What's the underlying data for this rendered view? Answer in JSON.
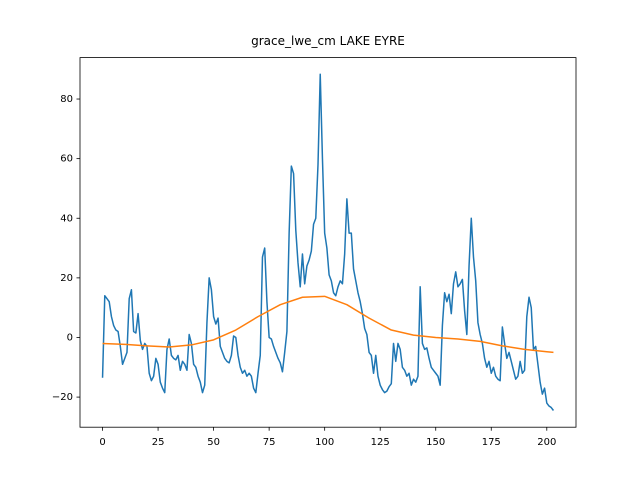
{
  "chart_data": {
    "type": "line",
    "title": "grace_lwe_cm LAKE EYRE",
    "xlim": [
      -10.15,
      213.15
    ],
    "ylim": [
      -30.1,
      93.9
    ],
    "xticks": [
      0,
      25,
      50,
      75,
      100,
      125,
      150,
      175,
      200
    ],
    "yticks": [
      {
        "value": -20,
        "label": "−20"
      },
      0,
      20,
      40,
      60,
      80
    ],
    "series": [
      {
        "color": "#1f77b4",
        "x": [
          0,
          1,
          2,
          3,
          4,
          5,
          6,
          7,
          8,
          9,
          10,
          11,
          12,
          13,
          14,
          15,
          16,
          17,
          18,
          19,
          20,
          21,
          22,
          23,
          24,
          25,
          26,
          27,
          28,
          29,
          30,
          31,
          32,
          33,
          34,
          35,
          36,
          37,
          38,
          39,
          40,
          41,
          42,
          43,
          44,
          45,
          46,
          47,
          48,
          49,
          50,
          51,
          52,
          53,
          54,
          55,
          56,
          57,
          58,
          59,
          60,
          61,
          62,
          63,
          64,
          65,
          66,
          67,
          68,
          69,
          70,
          71,
          72,
          73,
          74,
          75,
          76,
          77,
          78,
          79,
          80,
          81,
          82,
          83,
          84,
          85,
          86,
          87,
          88,
          89,
          90,
          91,
          92,
          93,
          94,
          95,
          96,
          97,
          98,
          99,
          100,
          101,
          102,
          103,
          104,
          105,
          106,
          107,
          108,
          109,
          110,
          111,
          112,
          113,
          114,
          115,
          116,
          117,
          118,
          119,
          120,
          121,
          122,
          123,
          124,
          125,
          126,
          127,
          128,
          129,
          130,
          131,
          132,
          133,
          134,
          135,
          136,
          137,
          138,
          139,
          140,
          141,
          142,
          143,
          144,
          145,
          146,
          147,
          148,
          149,
          150,
          151,
          152,
          153,
          154,
          155,
          156,
          157,
          158,
          159,
          160,
          161,
          162,
          163,
          164,
          165,
          166,
          167,
          168,
          169,
          170,
          171,
          172,
          173,
          174,
          175,
          176,
          177,
          178,
          179,
          180,
          181,
          182,
          183,
          184,
          185,
          186,
          187,
          188,
          189,
          190,
          191,
          192,
          193,
          194,
          195,
          196,
          197,
          198,
          199,
          200,
          201,
          202,
          203
        ],
        "values": [
          -13.5,
          14,
          13,
          12,
          7,
          4,
          2.5,
          2,
          -3,
          -9,
          -7,
          -5,
          13,
          16,
          2,
          1.5,
          8,
          -1,
          -4,
          -2,
          -3,
          -12,
          -14.5,
          -13,
          -7,
          -9,
          -15,
          -17,
          -18.5,
          -4,
          -0.5,
          -6,
          -7,
          -7.5,
          -6,
          -11,
          -8,
          -9,
          -11,
          1,
          -2,
          -9,
          -10,
          -13,
          -15,
          -18.5,
          -16,
          5,
          20,
          16,
          7,
          4.5,
          6.5,
          -3,
          -5,
          -7,
          -8,
          -8.5,
          -6,
          0.5,
          0,
          -6,
          -10,
          -12,
          -11,
          -13,
          -12,
          -13,
          -17,
          -18.5,
          -12,
          -6,
          27,
          30,
          12,
          0,
          -0.5,
          -3,
          -5,
          -7,
          -8.5,
          -11.5,
          -5,
          2,
          35,
          57.5,
          55,
          36,
          25,
          17,
          28,
          18,
          24,
          26,
          29,
          38,
          40,
          58,
          88.3,
          60,
          35,
          30,
          21,
          19,
          15,
          14,
          17,
          19,
          18,
          28,
          46.5,
          35,
          35,
          23,
          19,
          15,
          12,
          8,
          3,
          1,
          -5,
          -6,
          -12,
          -6,
          -13,
          -16,
          -17.5,
          -18.5,
          -18,
          -16.5,
          -15.5,
          -2,
          -8,
          -2,
          -4,
          -10,
          -11,
          -13,
          -12,
          -16,
          -14,
          -15,
          -13,
          17,
          -2,
          -4,
          -3.5,
          -7,
          -10,
          -11,
          -12,
          -13,
          -16,
          4,
          15,
          12,
          14.5,
          8,
          18,
          22,
          17,
          18,
          19.5,
          9,
          1,
          24,
          40,
          27,
          19,
          5,
          1,
          -2,
          -7,
          -10,
          -8,
          -12,
          -10,
          -13,
          -14,
          -14.5,
          3.5,
          -2,
          -7,
          -5,
          -8,
          -11,
          -14,
          -13,
          -8,
          -12,
          -11,
          7,
          13.5,
          10,
          -4,
          -3,
          -9,
          -15,
          -19,
          -17,
          -22,
          -23,
          -23.5,
          -24.5
        ]
      },
      {
        "color": "#ff7f0e",
        "x": [
          0,
          10,
          20,
          30,
          40,
          50,
          60,
          70,
          80,
          90,
          100,
          110,
          120,
          130,
          140,
          150,
          160,
          170,
          180,
          190,
          200,
          203
        ],
        "values": [
          -2,
          -2.3,
          -2.8,
          -3.2,
          -2.5,
          -0.8,
          2.5,
          7,
          11,
          13.5,
          13.8,
          11,
          6.5,
          2.5,
          0.8,
          0,
          -0.5,
          -1.3,
          -2.8,
          -4,
          -4.8,
          -5
        ]
      }
    ]
  }
}
